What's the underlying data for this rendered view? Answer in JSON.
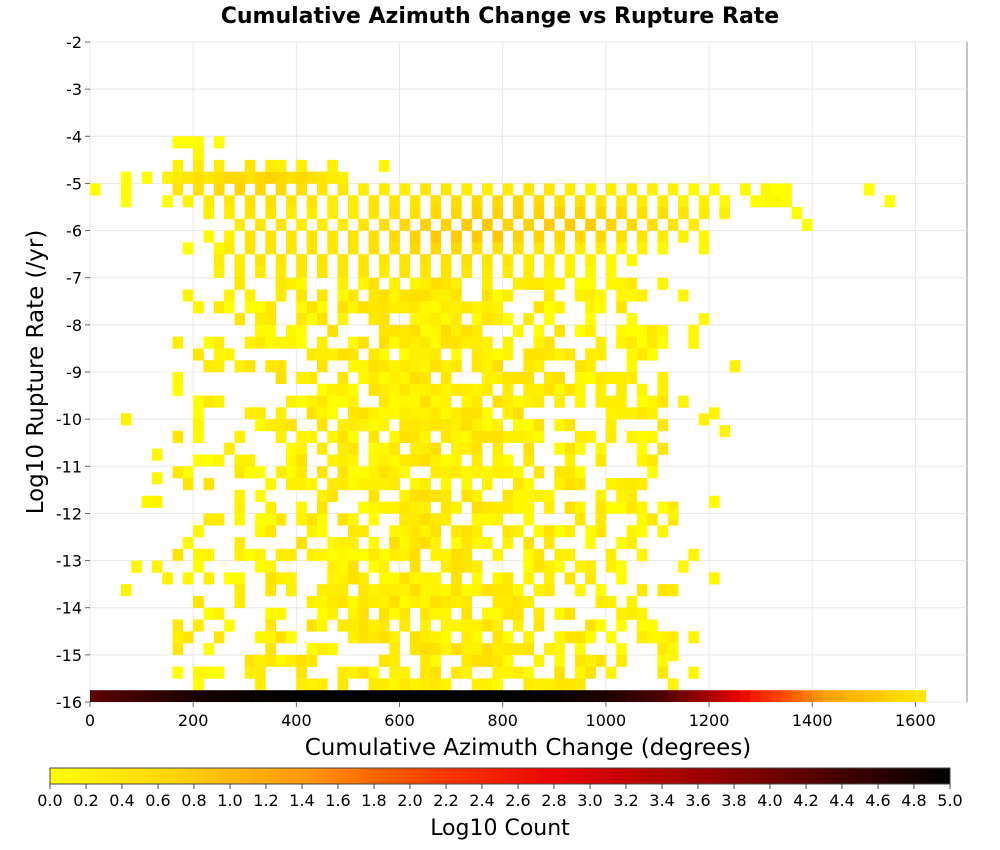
{
  "chart_data": {
    "type": "heatmap",
    "title": "Cumulative Azimuth Change vs Rupture Rate",
    "xlabel": "Cumulative Azimuth Change (degrees)",
    "ylabel": "Log10 Rupture Rate (/yr)",
    "xlim": [
      0,
      1700
    ],
    "ylim": [
      -16,
      -2
    ],
    "x_ticks": [
      "0",
      "200",
      "400",
      "600",
      "800",
      "1000",
      "1200",
      "1400",
      "1600"
    ],
    "y_ticks": [
      "-2",
      "-3",
      "-4",
      "-5",
      "-6",
      "-7",
      "-8",
      "-9",
      "-10",
      "-11",
      "-12",
      "-13",
      "-14",
      "-15",
      "-16"
    ],
    "grid": true,
    "bin_width_x": 20,
    "bin_height_y": 0.25,
    "cells": [
      [
        60,
        -4.875,
        0.0
      ],
      [
        60,
        -5.125,
        0.0
      ],
      [
        0,
        -5.125,
        0.0
      ],
      [
        60,
        -5.375,
        0.0
      ],
      [
        0,
        -5.125,
        0.0
      ],
      [
        100,
        -4.875,
        0.0
      ],
      [
        140,
        -4.875,
        0.2
      ],
      [
        160,
        -4.875,
        0.3
      ],
      [
        180,
        -4.875,
        0.4
      ],
      [
        200,
        -4.875,
        0.5
      ],
      [
        220,
        -4.875,
        0.4
      ],
      [
        240,
        -4.875,
        0.5
      ],
      [
        260,
        -4.875,
        0.6
      ],
      [
        280,
        -4.875,
        0.6
      ],
      [
        300,
        -4.875,
        0.5
      ],
      [
        320,
        -4.875,
        0.6
      ],
      [
        340,
        -4.875,
        0.7
      ],
      [
        360,
        -4.875,
        0.6
      ],
      [
        380,
        -4.875,
        0.5
      ],
      [
        400,
        -4.875,
        0.6
      ],
      [
        420,
        -4.875,
        0.5
      ],
      [
        440,
        -4.875,
        0.4
      ],
      [
        460,
        -4.875,
        0.3
      ],
      [
        480,
        -4.875,
        0.2
      ],
      [
        160,
        -4.625,
        0.2
      ],
      [
        200,
        -4.625,
        0.3
      ],
      [
        240,
        -4.625,
        0.3
      ],
      [
        300,
        -4.625,
        0.4
      ],
      [
        340,
        -4.625,
        0.3
      ],
      [
        360,
        -4.625,
        0.2
      ],
      [
        400,
        -4.625,
        0.2
      ],
      [
        460,
        -4.625,
        0.2
      ],
      [
        560,
        -4.625,
        0.1
      ],
      [
        200,
        -4.375,
        0.1
      ],
      [
        160,
        -4.125,
        0.0
      ],
      [
        180,
        -4.125,
        0.0
      ],
      [
        200,
        -4.125,
        0.0
      ],
      [
        240,
        -4.125,
        0.0
      ],
      [
        160,
        -5.125,
        0.4
      ],
      [
        200,
        -5.125,
        0.5
      ],
      [
        240,
        -5.125,
        0.6
      ],
      [
        280,
        -5.125,
        0.7
      ],
      [
        320,
        -5.125,
        0.6
      ],
      [
        360,
        -5.125,
        0.6
      ],
      [
        400,
        -5.125,
        0.5
      ],
      [
        440,
        -5.125,
        0.4
      ],
      [
        480,
        -5.125,
        0.4
      ],
      [
        520,
        -5.125,
        0.3
      ],
      [
        560,
        -5.125,
        0.3
      ],
      [
        600,
        -5.125,
        0.3
      ],
      [
        640,
        -5.125,
        0.4
      ],
      [
        680,
        -5.125,
        0.4
      ],
      [
        720,
        -5.125,
        0.3
      ],
      [
        760,
        -5.125,
        0.3
      ],
      [
        800,
        -5.125,
        0.3
      ],
      [
        840,
        -5.125,
        0.4
      ],
      [
        880,
        -5.125,
        0.4
      ],
      [
        920,
        -5.125,
        0.3
      ],
      [
        960,
        -5.125,
        0.2
      ],
      [
        1000,
        -5.125,
        0.3
      ],
      [
        1040,
        -5.125,
        0.3
      ],
      [
        1080,
        -5.125,
        0.2
      ],
      [
        1120,
        -5.125,
        0.2
      ],
      [
        1160,
        -5.125,
        0.1
      ],
      [
        1200,
        -5.125,
        0.1
      ],
      [
        1260,
        -5.125,
        0.1
      ],
      [
        1300,
        -5.125,
        0.1
      ],
      [
        1320,
        -5.125,
        0.0
      ],
      [
        1340,
        -5.125,
        0.0
      ],
      [
        1500,
        -5.125,
        0.0
      ],
      [
        1540,
        -5.375,
        0.0
      ],
      [
        1220,
        -5.375,
        0.1
      ],
      [
        1300,
        -5.375,
        0.1
      ],
      [
        1320,
        -5.375,
        0.1
      ],
      [
        1280,
        -5.375,
        0.0
      ],
      [
        1340,
        -5.375,
        0.0
      ],
      [
        1360,
        -5.625,
        0.0
      ],
      [
        1380,
        -5.875,
        0.0
      ],
      [
        140,
        -5.375,
        0.0
      ],
      [
        180,
        -5.375,
        0.2
      ],
      [
        220,
        -5.375,
        0.3
      ],
      [
        260,
        -5.375,
        0.4
      ],
      [
        300,
        -5.375,
        0.5
      ],
      [
        340,
        -5.375,
        0.5
      ],
      [
        380,
        -5.375,
        0.4
      ],
      [
        420,
        -5.375,
        0.4
      ],
      [
        460,
        -5.375,
        0.3
      ],
      [
        500,
        -5.375,
        0.3
      ],
      [
        540,
        -5.375,
        0.4
      ],
      [
        580,
        -5.375,
        0.4
      ],
      [
        620,
        -5.375,
        0.4
      ],
      [
        660,
        -5.375,
        0.5
      ],
      [
        700,
        -5.375,
        0.5
      ],
      [
        740,
        -5.375,
        0.6
      ],
      [
        780,
        -5.375,
        0.6
      ],
      [
        820,
        -5.375,
        0.6
      ],
      [
        860,
        -5.375,
        0.6
      ],
      [
        900,
        -5.375,
        0.5
      ],
      [
        940,
        -5.375,
        0.5
      ],
      [
        980,
        -5.375,
        0.4
      ],
      [
        1020,
        -5.375,
        0.4
      ],
      [
        1060,
        -5.375,
        0.3
      ],
      [
        1100,
        -5.375,
        0.3
      ],
      [
        1140,
        -5.375,
        0.2
      ],
      [
        1180,
        -5.375,
        0.2
      ],
      [
        220,
        -5.625,
        0.2
      ],
      [
        260,
        -5.625,
        0.3
      ],
      [
        300,
        -5.625,
        0.4
      ],
      [
        340,
        -5.625,
        0.4
      ],
      [
        380,
        -5.625,
        0.3
      ],
      [
        420,
        -5.625,
        0.3
      ],
      [
        460,
        -5.625,
        0.3
      ],
      [
        500,
        -5.625,
        0.3
      ],
      [
        540,
        -5.625,
        0.4
      ],
      [
        580,
        -5.625,
        0.5
      ],
      [
        620,
        -5.625,
        0.5
      ],
      [
        660,
        -5.625,
        0.6
      ],
      [
        700,
        -5.625,
        0.6
      ],
      [
        740,
        -5.625,
        0.7
      ],
      [
        780,
        -5.625,
        0.7
      ],
      [
        820,
        -5.625,
        0.7
      ],
      [
        860,
        -5.625,
        0.7
      ],
      [
        900,
        -5.625,
        0.7
      ],
      [
        940,
        -5.625,
        0.7
      ],
      [
        980,
        -5.625,
        0.6
      ],
      [
        1020,
        -5.625,
        0.6
      ],
      [
        1060,
        -5.625,
        0.5
      ],
      [
        1100,
        -5.625,
        0.5
      ],
      [
        1140,
        -5.625,
        0.4
      ],
      [
        1180,
        -5.625,
        0.3
      ],
      [
        1220,
        -5.625,
        0.2
      ],
      [
        180,
        -6.375,
        0.0
      ],
      [
        240,
        -6.375,
        0.1
      ],
      [
        280,
        -5.875,
        0.3
      ],
      [
        320,
        -5.875,
        0.4
      ],
      [
        360,
        -5.875,
        0.4
      ],
      [
        400,
        -5.875,
        0.3
      ],
      [
        440,
        -5.875,
        0.3
      ],
      [
        480,
        -5.875,
        0.3
      ],
      [
        520,
        -5.875,
        0.4
      ],
      [
        560,
        -5.875,
        0.5
      ],
      [
        600,
        -5.875,
        0.6
      ],
      [
        640,
        -5.875,
        0.7
      ],
      [
        680,
        -5.875,
        0.7
      ],
      [
        720,
        -5.875,
        0.8
      ],
      [
        760,
        -5.875,
        0.8
      ],
      [
        800,
        -5.875,
        0.7
      ],
      [
        840,
        -5.875,
        0.7
      ],
      [
        880,
        -5.875,
        0.8
      ],
      [
        920,
        -5.875,
        0.8
      ],
      [
        960,
        -5.875,
        0.8
      ],
      [
        1000,
        -5.875,
        0.7
      ],
      [
        1040,
        -5.875,
        0.6
      ],
      [
        1080,
        -5.875,
        0.5
      ],
      [
        1120,
        -5.875,
        0.4
      ],
      [
        1160,
        -5.875,
        0.3
      ],
      [
        220,
        -6.125,
        0.1
      ],
      [
        260,
        -6.125,
        0.2
      ],
      [
        300,
        -6.125,
        0.4
      ],
      [
        340,
        -6.125,
        0.4
      ],
      [
        380,
        -6.125,
        0.4
      ],
      [
        420,
        -6.125,
        0.4
      ],
      [
        460,
        -6.125,
        0.4
      ],
      [
        500,
        -6.125,
        0.4
      ],
      [
        540,
        -6.125,
        0.5
      ],
      [
        580,
        -6.125,
        0.6
      ],
      [
        620,
        -6.125,
        0.7
      ],
      [
        660,
        -6.125,
        0.8
      ],
      [
        700,
        -6.125,
        0.8
      ],
      [
        740,
        -6.125,
        0.8
      ],
      [
        780,
        -6.125,
        0.8
      ],
      [
        820,
        -6.125,
        0.7
      ],
      [
        860,
        -6.125,
        0.7
      ],
      [
        900,
        -6.125,
        0.6
      ],
      [
        940,
        -6.125,
        0.6
      ],
      [
        980,
        -6.125,
        0.6
      ],
      [
        1020,
        -6.125,
        0.5
      ],
      [
        1060,
        -6.125,
        0.4
      ],
      [
        1100,
        -6.125,
        0.3
      ],
      [
        1140,
        -6.125,
        0.2
      ],
      [
        1180,
        -6.125,
        0.1
      ],
      [
        260,
        -6.375,
        0.3
      ],
      [
        300,
        -6.375,
        0.4
      ],
      [
        340,
        -6.375,
        0.4
      ],
      [
        380,
        -6.375,
        0.4
      ],
      [
        420,
        -6.375,
        0.4
      ],
      [
        460,
        -6.375,
        0.4
      ],
      [
        500,
        -6.375,
        0.4
      ],
      [
        540,
        -6.375,
        0.5
      ],
      [
        580,
        -6.375,
        0.5
      ],
      [
        620,
        -6.375,
        0.6
      ],
      [
        660,
        -6.375,
        0.6
      ],
      [
        700,
        -6.375,
        0.6
      ],
      [
        740,
        -6.375,
        0.5
      ],
      [
        780,
        -6.375,
        0.5
      ],
      [
        820,
        -6.375,
        0.5
      ],
      [
        860,
        -6.375,
        0.4
      ],
      [
        900,
        -6.375,
        0.4
      ],
      [
        940,
        -6.375,
        0.3
      ],
      [
        980,
        -6.375,
        0.3
      ],
      [
        1020,
        -6.375,
        0.2
      ],
      [
        1060,
        -6.375,
        0.2
      ],
      [
        1100,
        -6.375,
        0.1
      ],
      [
        240,
        -6.625,
        0.3
      ],
      [
        280,
        -6.625,
        0.3
      ],
      [
        320,
        -6.625,
        0.4
      ],
      [
        360,
        -6.625,
        0.4
      ],
      [
        400,
        -6.625,
        0.4
      ],
      [
        440,
        -6.625,
        0.4
      ],
      [
        480,
        -6.625,
        0.4
      ],
      [
        520,
        -6.625,
        0.4
      ],
      [
        560,
        -6.625,
        0.4
      ],
      [
        600,
        -6.625,
        0.4
      ],
      [
        640,
        -6.625,
        0.5
      ],
      [
        680,
        -6.625,
        0.5
      ],
      [
        720,
        -6.625,
        0.5
      ],
      [
        760,
        -6.625,
        0.4
      ],
      [
        800,
        -6.625,
        0.4
      ],
      [
        840,
        -6.625,
        0.3
      ],
      [
        880,
        -6.625,
        0.3
      ],
      [
        920,
        -6.625,
        0.2
      ],
      [
        960,
        -6.625,
        0.2
      ],
      [
        1000,
        -6.625,
        0.1
      ],
      [
        1040,
        -6.625,
        0.1
      ],
      [
        240,
        -6.875,
        0.2
      ],
      [
        280,
        -6.875,
        0.3
      ],
      [
        320,
        -6.875,
        0.3
      ],
      [
        360,
        -6.875,
        0.3
      ],
      [
        400,
        -6.875,
        0.4
      ],
      [
        440,
        -6.875,
        0.4
      ],
      [
        480,
        -6.875,
        0.4
      ],
      [
        520,
        -6.875,
        0.4
      ],
      [
        560,
        -6.875,
        0.3
      ],
      [
        600,
        -6.875,
        0.4
      ],
      [
        640,
        -6.875,
        0.4
      ],
      [
        680,
        -6.875,
        0.4
      ],
      [
        720,
        -6.875,
        0.4
      ],
      [
        760,
        -6.875,
        0.3
      ],
      [
        800,
        -6.875,
        0.3
      ],
      [
        840,
        -6.875,
        0.3
      ],
      [
        880,
        -6.875,
        0.2
      ],
      [
        920,
        -6.875,
        0.2
      ],
      [
        960,
        -6.875,
        0.1
      ],
      [
        1000,
        -6.875,
        0.1
      ]
    ],
    "region_fill": {
      "x_range": [
        160,
        1120
      ],
      "y_range": [
        -15.75,
        -7.0
      ],
      "typical_value": 0.3
    },
    "bottom_row": {
      "y": -15.875,
      "x_range": [
        0,
        1620
      ],
      "values_by_x": [
        [
          0,
          4.2
        ],
        [
          100,
          4.5
        ],
        [
          200,
          4.8
        ],
        [
          300,
          4.9
        ],
        [
          400,
          5.0
        ],
        [
          500,
          5.0
        ],
        [
          600,
          5.0
        ],
        [
          700,
          5.0
        ],
        [
          800,
          5.0
        ],
        [
          900,
          4.9
        ],
        [
          1000,
          4.7
        ],
        [
          1100,
          4.3
        ],
        [
          1200,
          3.4
        ],
        [
          1260,
          2.7
        ],
        [
          1300,
          2.3
        ],
        [
          1360,
          1.8
        ],
        [
          1420,
          1.3
        ],
        [
          1480,
          1.0
        ],
        [
          1540,
          0.7
        ],
        [
          1600,
          0.4
        ],
        [
          1620,
          0.2
        ]
      ]
    },
    "colorbar": {
      "label": "Log10 Count",
      "min": 0.0,
      "max": 5.0,
      "ticks": [
        "0.0",
        "0.2",
        "0.4",
        "0.6",
        "0.8",
        "1.0",
        "1.2",
        "1.4",
        "1.6",
        "1.8",
        "2.0",
        "2.2",
        "2.4",
        "2.6",
        "2.8",
        "3.0",
        "3.2",
        "3.4",
        "3.6",
        "3.8",
        "4.0",
        "4.2",
        "4.4",
        "4.6",
        "4.8",
        "5.0"
      ],
      "colors": [
        "#ffff00",
        "#ffd200",
        "#ff9600",
        "#ff3c00",
        "#e60000",
        "#a00000",
        "#500000",
        "#000000"
      ]
    }
  }
}
